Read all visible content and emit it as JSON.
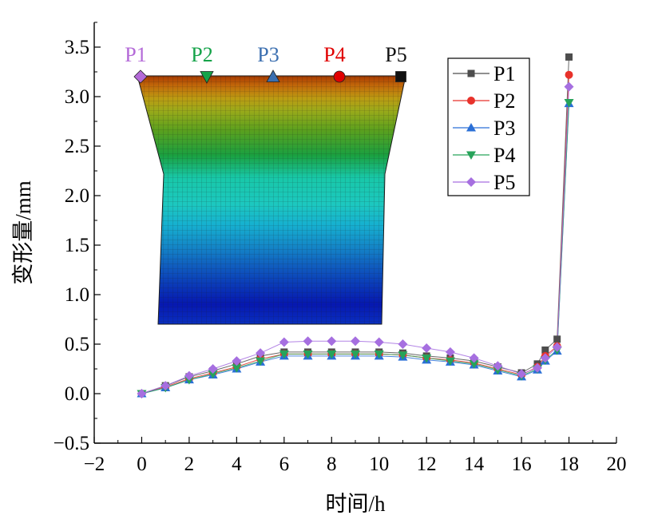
{
  "chart_data": {
    "type": "line",
    "xlabel": "时间/h",
    "ylabel": "变形量/mm",
    "xlim": [
      -2,
      20
    ],
    "ylim": [
      -0.5,
      3.75
    ],
    "x_ticks": [
      "−2",
      "0",
      "2",
      "4",
      "6",
      "8",
      "10",
      "12",
      "14",
      "16",
      "18",
      "20"
    ],
    "y_ticks": [
      "−0.5",
      "0.0",
      "0.5",
      "1.0",
      "1.5",
      "2.0",
      "2.5",
      "3.0",
      "3.5"
    ],
    "x": [
      0,
      1,
      2,
      3,
      4,
      5,
      6,
      7,
      8,
      9,
      10,
      11,
      12,
      13,
      14,
      15,
      16,
      16.67,
      17,
      17.5,
      18
    ],
    "series": [
      {
        "name": "P1",
        "color": "#4d4d4d",
        "marker": "square",
        "values": [
          0.0,
          0.08,
          0.17,
          0.23,
          0.3,
          0.38,
          0.42,
          0.42,
          0.42,
          0.42,
          0.42,
          0.41,
          0.38,
          0.36,
          0.33,
          0.27,
          0.21,
          0.3,
          0.44,
          0.55,
          3.4
        ]
      },
      {
        "name": "P2",
        "color": "#e8322b",
        "marker": "circle",
        "values": [
          0.0,
          0.07,
          0.15,
          0.21,
          0.27,
          0.35,
          0.4,
          0.4,
          0.4,
          0.4,
          0.4,
          0.39,
          0.36,
          0.34,
          0.31,
          0.25,
          0.19,
          0.27,
          0.38,
          0.48,
          3.22
        ]
      },
      {
        "name": "P3",
        "color": "#2a6fd6",
        "marker": "triangle-up",
        "values": [
          0.0,
          0.06,
          0.14,
          0.19,
          0.25,
          0.32,
          0.38,
          0.38,
          0.38,
          0.38,
          0.38,
          0.37,
          0.34,
          0.32,
          0.29,
          0.23,
          0.17,
          0.24,
          0.33,
          0.43,
          2.93
        ]
      },
      {
        "name": "P4",
        "color": "#27a35a",
        "marker": "triangle-down",
        "values": [
          0.0,
          0.06,
          0.14,
          0.2,
          0.26,
          0.33,
          0.4,
          0.4,
          0.4,
          0.4,
          0.4,
          0.39,
          0.36,
          0.33,
          0.3,
          0.24,
          0.18,
          0.25,
          0.34,
          0.44,
          2.94
        ]
      },
      {
        "name": "P5",
        "color": "#a66fe0",
        "marker": "diamond",
        "values": [
          0.0,
          0.08,
          0.18,
          0.25,
          0.33,
          0.41,
          0.52,
          0.53,
          0.53,
          0.53,
          0.52,
          0.5,
          0.46,
          0.42,
          0.36,
          0.28,
          0.2,
          0.26,
          0.36,
          0.47,
          3.1
        ]
      }
    ],
    "legend": {
      "placement": "top-right",
      "entries": [
        "P1",
        "P2",
        "P3",
        "P4",
        "P5"
      ]
    },
    "inset": {
      "description": "deformation contour plot",
      "probe_labels": [
        {
          "label": "P1",
          "color": "#b46ad8"
        },
        {
          "label": "P2",
          "color": "#16a34a"
        },
        {
          "label": "P3",
          "color": "#3b6fb0"
        },
        {
          "label": "P4",
          "color": "#e00000"
        },
        {
          "label": "P5",
          "color": "#111111"
        }
      ]
    }
  }
}
